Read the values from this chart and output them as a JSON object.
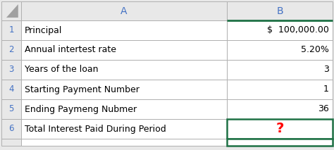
{
  "col_a_header": "A",
  "col_b_header": "B",
  "rows": [
    {
      "num": "1",
      "label": "Principal",
      "value": "$  100,000.00"
    },
    {
      "num": "2",
      "label": "Annual intertest rate",
      "value": "5.20%"
    },
    {
      "num": "3",
      "label": "Years of the loan",
      "value": "3"
    },
    {
      "num": "4",
      "label": "Starting Payment Number",
      "value": "1"
    },
    {
      "num": "5",
      "label": "Ending Paymeng Nubmer",
      "value": "36"
    },
    {
      "num": "6",
      "label": "Total Interest Paid During Period",
      "value": "?"
    }
  ],
  "header_bg": "#e8e8e8",
  "row_num_bg": "#e8e8e8",
  "cell_bg": "#ffffff",
  "border_color": "#b0b0b0",
  "green_border_color": "#1e7145",
  "text_color": "#000000",
  "red_color": "#ff0000",
  "header_text_color": "#4472c4",
  "row_num_color": "#4472c4",
  "corner_tri_color": "#a0a0a0"
}
